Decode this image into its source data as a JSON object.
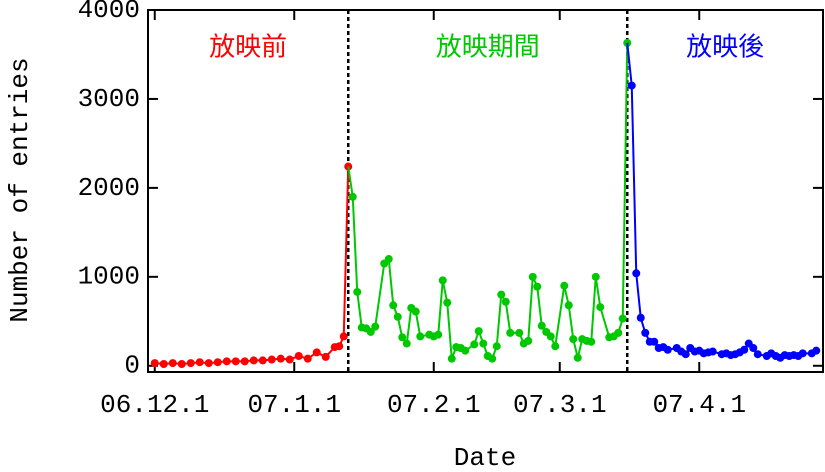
{
  "chart_data": {
    "type": "line",
    "xlabel": "Date",
    "ylabel": "Number of entries",
    "xlim": [
      -1.5,
      148.5
    ],
    "ylim": [
      -70,
      4000
    ],
    "xticks": [
      {
        "value": 0,
        "label": "06.12.1"
      },
      {
        "value": 31,
        "label": "07.1.1"
      },
      {
        "value": 62,
        "label": "07.2.1"
      },
      {
        "value": 90,
        "label": "07.3.1"
      },
      {
        "value": 121,
        "label": "07.4.1"
      }
    ],
    "yticks": [
      0,
      1000,
      2000,
      3000,
      4000
    ],
    "vlines": [
      43,
      105
    ],
    "annotations": [
      {
        "text": "放映前",
        "color": "#ff0000"
      },
      {
        "text": "放映期間",
        "color": "#00c800"
      },
      {
        "text": "放映後",
        "color": "#0000ff"
      }
    ],
    "series": [
      {
        "color": "#ff0000",
        "x": [
          0,
          2,
          4,
          6,
          8,
          10,
          12,
          14,
          16,
          18,
          20,
          22,
          24,
          26,
          28,
          30,
          32,
          34,
          36,
          38,
          40,
          41,
          42,
          43
        ],
        "values": [
          30,
          20,
          30,
          20,
          30,
          40,
          30,
          40,
          50,
          50,
          50,
          60,
          60,
          70,
          80,
          70,
          110,
          80,
          150,
          100,
          210,
          220,
          330,
          2240
        ]
      },
      {
        "color": "#00c800",
        "x": [
          44,
          45,
          46,
          47,
          48,
          49,
          51,
          52,
          53,
          54,
          55,
          56,
          57,
          58,
          59,
          61,
          62,
          63,
          64,
          65,
          66,
          67,
          68,
          69,
          71,
          72,
          73,
          74,
          75,
          76,
          77,
          78,
          79,
          81,
          82,
          83,
          84,
          85,
          86,
          87,
          88,
          89,
          91,
          92,
          93,
          94,
          95,
          96,
          97,
          98,
          99,
          101,
          102,
          103,
          104,
          105
        ],
        "values": [
          1900,
          830,
          430,
          420,
          380,
          440,
          1150,
          1200,
          680,
          550,
          320,
          250,
          650,
          610,
          330,
          350,
          330,
          350,
          960,
          710,
          80,
          210,
          200,
          170,
          240,
          390,
          250,
          110,
          80,
          220,
          800,
          720,
          370,
          370,
          250,
          280,
          1000,
          890,
          450,
          380,
          330,
          220,
          900,
          680,
          300,
          90,
          300,
          280,
          270,
          1000,
          660,
          320,
          330,
          370,
          530,
          3630
        ]
      },
      {
        "color": "#0000ff",
        "x": [
          106,
          107,
          108,
          109,
          110,
          111,
          112,
          113,
          114,
          116,
          117,
          118,
          119,
          120,
          121,
          122,
          123,
          124,
          126,
          127,
          128,
          129,
          130,
          131,
          132,
          133,
          134,
          136,
          137,
          138,
          139,
          140,
          141,
          142,
          143,
          144,
          146,
          147
        ],
        "values": [
          3150,
          1040,
          540,
          370,
          270,
          270,
          200,
          210,
          180,
          200,
          160,
          130,
          200,
          160,
          170,
          140,
          150,
          160,
          130,
          140,
          120,
          130,
          150,
          180,
          250,
          200,
          130,
          110,
          140,
          110,
          90,
          120,
          110,
          120,
          110,
          140,
          140,
          170
        ]
      }
    ]
  }
}
